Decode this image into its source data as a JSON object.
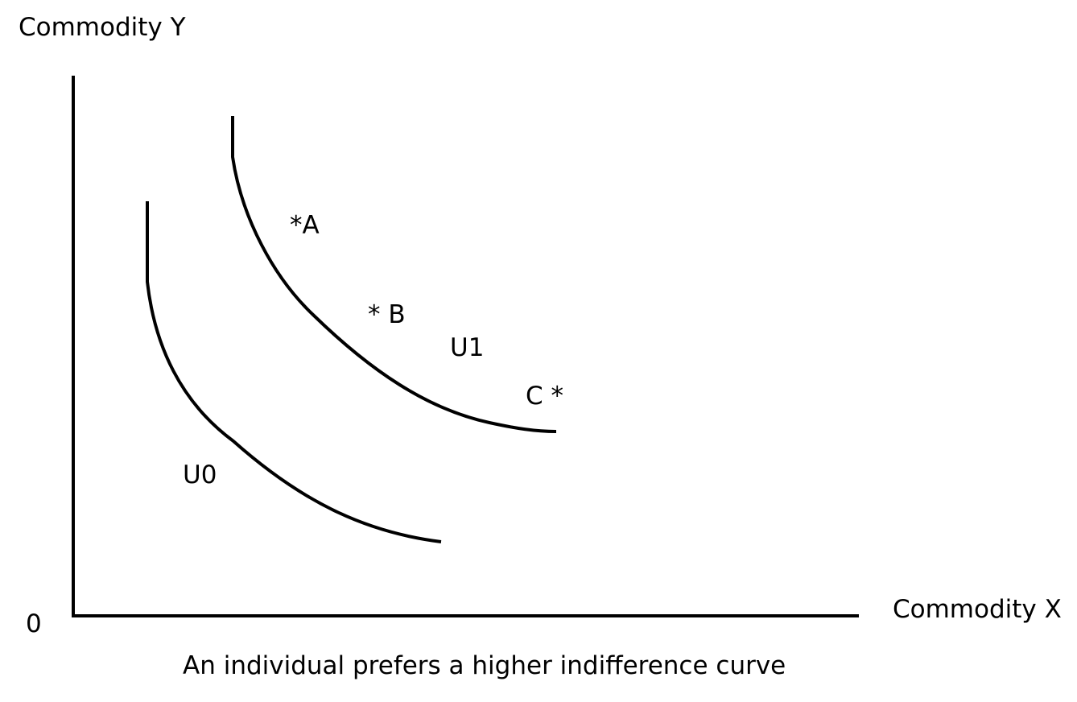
{
  "axes": {
    "y_label": "Commodity Y",
    "x_label": "Commodity X",
    "origin_label": "0"
  },
  "curves": [
    {
      "label": "U0"
    },
    {
      "label": "U1"
    }
  ],
  "points": [
    {
      "label": "*A"
    },
    {
      "label": "* B"
    },
    {
      "label": "C *"
    }
  ],
  "caption": "An individual prefers a higher indifference curve",
  "colors": {
    "line": "#000000",
    "background": "#ffffff"
  }
}
